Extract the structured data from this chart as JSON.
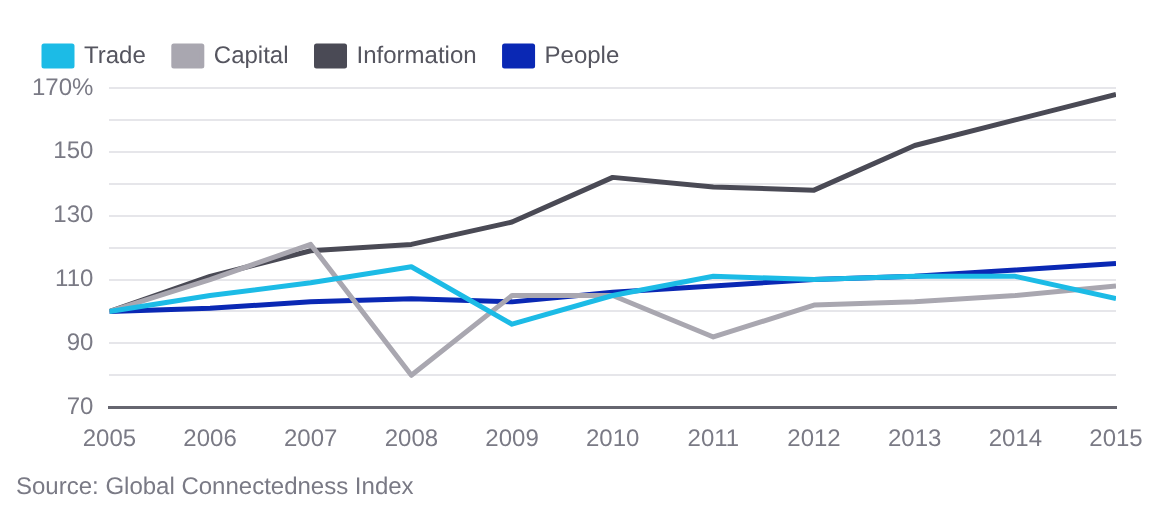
{
  "chart_data": {
    "type": "line",
    "x": [
      2005,
      2006,
      2007,
      2008,
      2009,
      2010,
      2011,
      2012,
      2013,
      2014,
      2015
    ],
    "series": [
      {
        "name": "Trade",
        "color": "#1cbbe6",
        "values": [
          100,
          105,
          109,
          114,
          96,
          105,
          111,
          110,
          111,
          111,
          104
        ]
      },
      {
        "name": "Capital",
        "color": "#a9a7b0",
        "values": [
          100,
          110,
          121,
          80,
          105,
          105,
          92,
          102,
          103,
          105,
          108
        ]
      },
      {
        "name": "Information",
        "color": "#4a4a55",
        "values": [
          100,
          111,
          119,
          121,
          128,
          142,
          139,
          138,
          152,
          160,
          168
        ]
      },
      {
        "name": "People",
        "color": "#0a28b4",
        "values": [
          100,
          101,
          103,
          104,
          103,
          106,
          108,
          110,
          111,
          113,
          115
        ]
      }
    ],
    "xlim": [
      2005,
      2015
    ],
    "xticks": [
      2005,
      2006,
      2007,
      2008,
      2009,
      2010,
      2011,
      2012,
      2013,
      2014,
      2015
    ],
    "ylim": [
      70,
      170
    ],
    "yticks": [
      70,
      {
        "value": 80,
        "label": null
      },
      90,
      {
        "value": 100,
        "label": null
      },
      110,
      {
        "value": 120,
        "label": null
      },
      130,
      {
        "value": 140,
        "label": null
      },
      150,
      {
        "value": 160,
        "label": null
      },
      {
        "value": 170,
        "label": "170%"
      }
    ],
    "grid": "y",
    "legend": "top left",
    "marker": "none",
    "line_style": "solid",
    "annotations": [
      "Source: Global Connectedness Index"
    ]
  }
}
